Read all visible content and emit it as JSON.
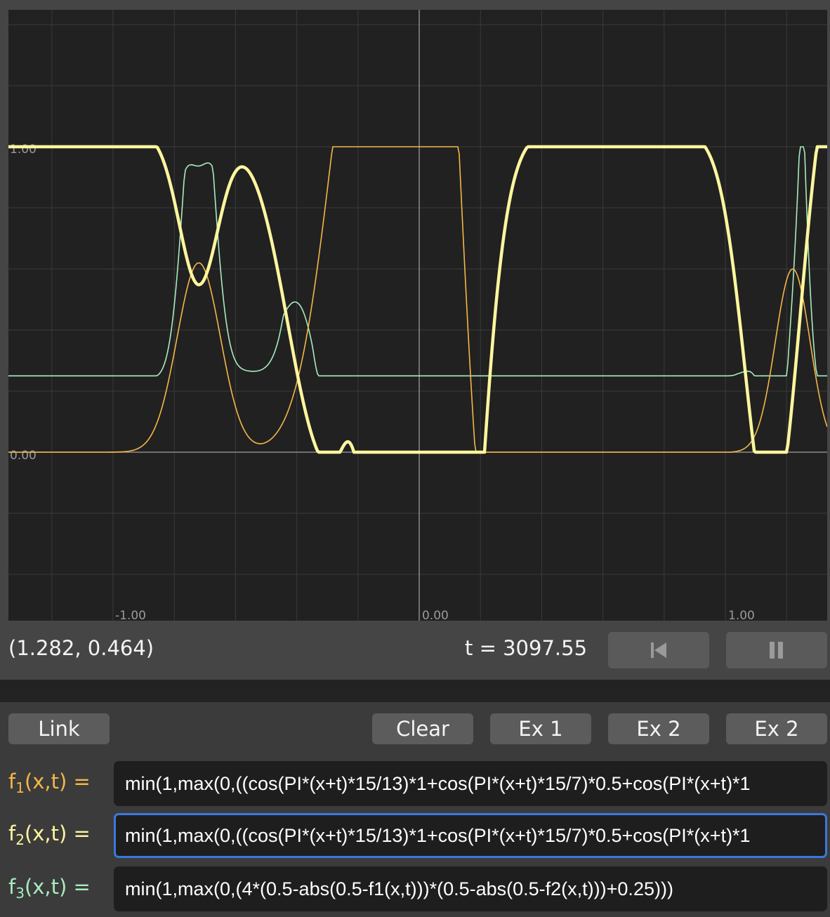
{
  "plot": {
    "x_ticks": [
      "-1.00",
      "0.00",
      "1.00"
    ],
    "y_ticks": [
      "1.00",
      "0.00"
    ],
    "colors": {
      "background": "#212121",
      "f1": "#f5b748",
      "f2": "#fef69e",
      "f3": "#a9ecbe",
      "axis": "#8a8a8a",
      "grid": "#3a3a3a"
    }
  },
  "status": {
    "coordinates": "(1.282, 0.464)",
    "time": "t = 3097.55",
    "rewind_icon": "skip-back-icon",
    "pause_icon": "pause-icon"
  },
  "buttons": {
    "link": "Link",
    "clear": "Clear",
    "ex1": "Ex 1",
    "ex2a": "Ex 2",
    "ex2b": "Ex 2"
  },
  "functions": [
    {
      "sub": "1",
      "args": "(x,t) =",
      "color": "#f5b748",
      "value": "min(1,max(0,((cos(PI*(x+t)*15/13)*1+cos(PI*(x+t)*15/7)*0.5+cos(PI*(x+t)*1"
    },
    {
      "sub": "2",
      "args": "(x,t) =",
      "color": "#fef69e",
      "value": "min(1,max(0,((cos(PI*(x+t)*15/13)*1+cos(PI*(x+t)*15/7)*0.5+cos(PI*(x+t)*1"
    },
    {
      "sub": "3",
      "args": "(x,t) =",
      "color": "#a9ecbe",
      "value": "min(1,max(0,(4*(0.5-abs(0.5-f1(x,t)))*(0.5-abs(0.5-f2(x,t)))+0.25)))"
    }
  ]
}
